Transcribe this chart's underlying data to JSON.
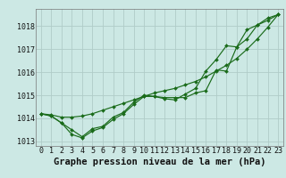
{
  "title": "Graphe pression niveau de la mer (hPa)",
  "bg_color": "#cce8e4",
  "grid_color": "#b0ccc8",
  "line_color": "#1a6b1a",
  "hours": [
    0,
    1,
    2,
    3,
    4,
    5,
    6,
    7,
    8,
    9,
    10,
    11,
    12,
    13,
    14,
    15,
    16,
    17,
    18,
    19,
    20,
    21,
    22,
    23
  ],
  "line1": [
    1014.2,
    1014.1,
    1013.8,
    1013.3,
    1013.15,
    1013.45,
    1013.6,
    1013.95,
    1014.2,
    1014.6,
    1014.95,
    1014.95,
    1014.85,
    1014.8,
    1015.05,
    1015.3,
    1016.05,
    1016.55,
    1017.15,
    1017.1,
    1017.85,
    1018.05,
    1018.35,
    1018.5
  ],
  "line2": [
    1014.2,
    1014.1,
    1013.8,
    1013.5,
    1013.2,
    1013.55,
    1013.65,
    1014.05,
    1014.25,
    1014.7,
    1015.0,
    1014.95,
    1014.9,
    1014.9,
    1014.9,
    1015.1,
    1015.2,
    1016.1,
    1016.05,
    1017.1,
    1017.45,
    1018.05,
    1018.25,
    1018.5
  ],
  "line3": [
    1014.2,
    1014.15,
    1014.05,
    1014.05,
    1014.1,
    1014.2,
    1014.35,
    1014.5,
    1014.65,
    1014.8,
    1014.95,
    1015.1,
    1015.2,
    1015.3,
    1015.45,
    1015.6,
    1015.8,
    1016.05,
    1016.3,
    1016.6,
    1017.0,
    1017.45,
    1017.95,
    1018.5
  ],
  "ylim": [
    1012.8,
    1018.75
  ],
  "yticks": [
    1013,
    1014,
    1015,
    1016,
    1017,
    1018
  ],
  "xlim": [
    -0.5,
    23.5
  ],
  "title_fontsize": 7.5,
  "tick_fontsize": 6.0
}
